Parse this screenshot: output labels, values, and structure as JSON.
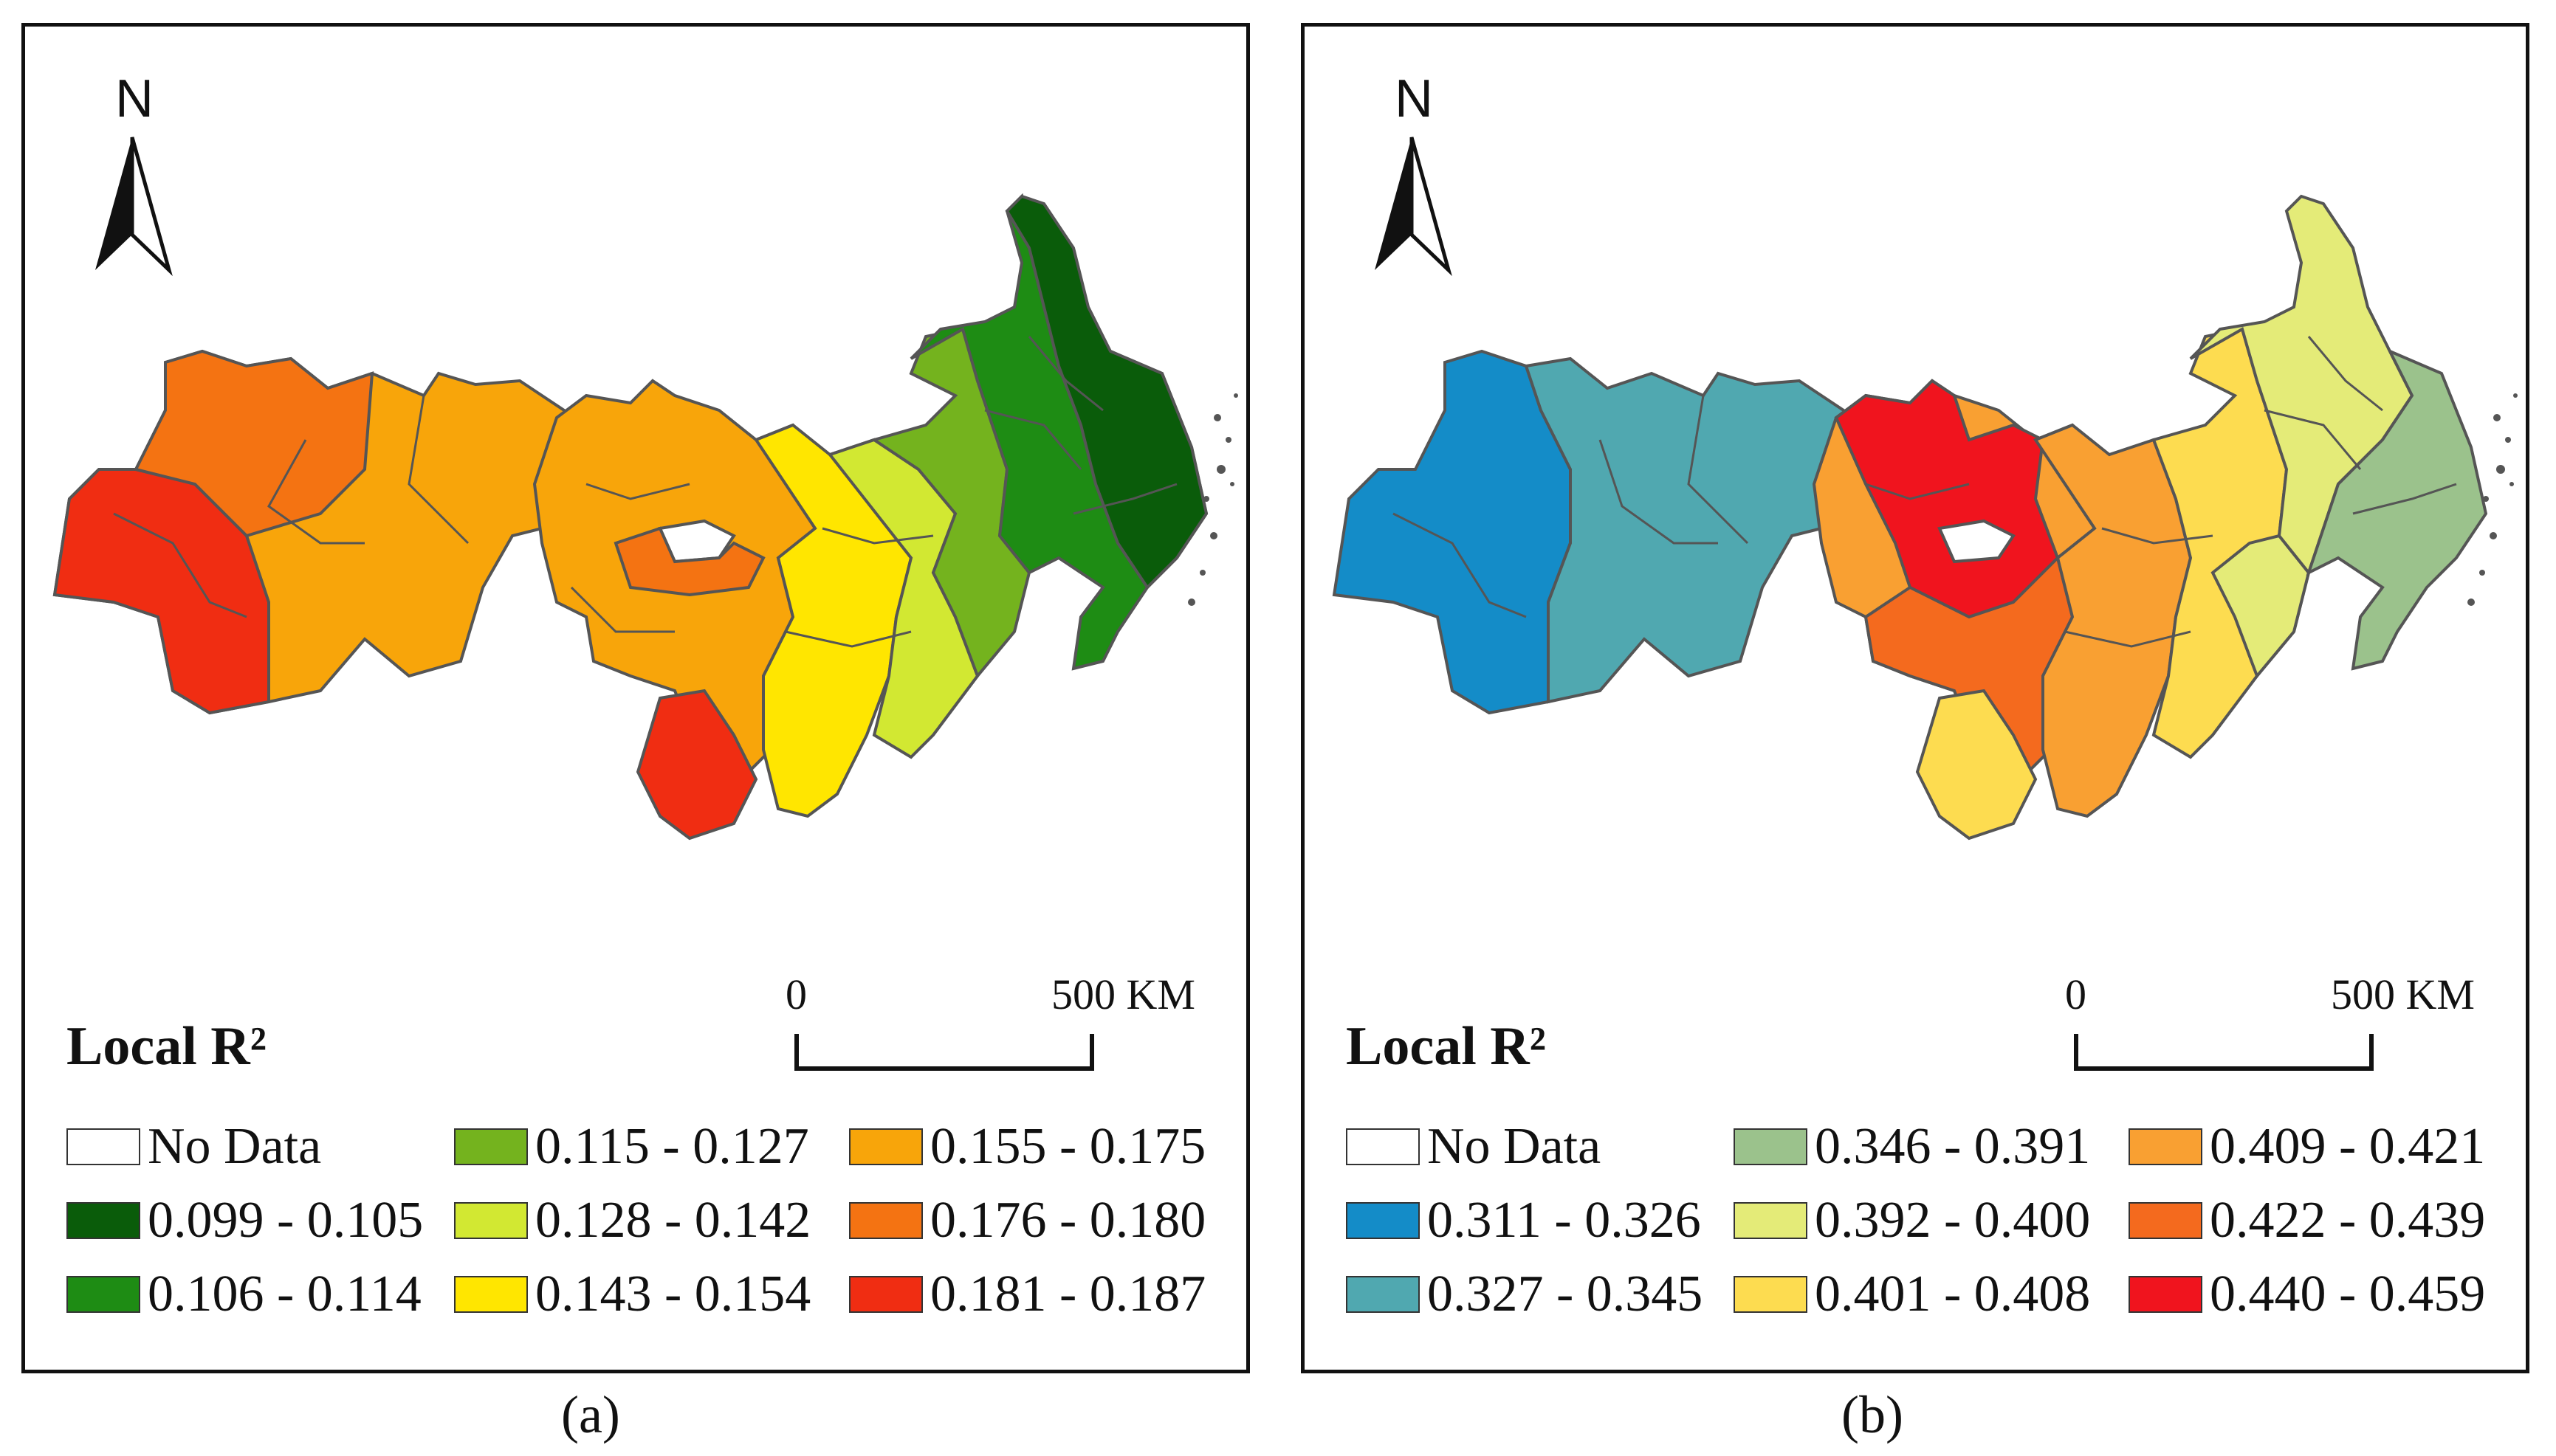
{
  "panels": [
    {
      "id": "a",
      "caption": "(a)",
      "north": "N",
      "legend_title": "Local R²",
      "scale": {
        "start": "0",
        "end": "500 KM"
      },
      "legend": [
        {
          "label": "No Data",
          "color": "#ffffff"
        },
        {
          "label": "0.099 - 0.105",
          "color": "#0a5c0a"
        },
        {
          "label": "0.106 - 0.114",
          "color": "#1e8c14"
        },
        {
          "label": "0.115 - 0.127",
          "color": "#74b31e"
        },
        {
          "label": "0.128 - 0.142",
          "color": "#d2e832"
        },
        {
          "label": "0.143 - 0.154",
          "color": "#ffe600"
        },
        {
          "label": "0.155 - 0.175",
          "color": "#f8a50a"
        },
        {
          "label": "0.176 - 0.180",
          "color": "#f47312"
        },
        {
          "label": "0.181 - 0.187",
          "color": "#f02d12"
        }
      ]
    },
    {
      "id": "b",
      "caption": "(b)",
      "north": "N",
      "legend_title": "Local R²",
      "scale": {
        "start": "0",
        "end": "500 KM"
      },
      "legend": [
        {
          "label": "No Data",
          "color": "#ffffff"
        },
        {
          "label": "0.311 - 0.326",
          "color": "#148cc8"
        },
        {
          "label": "0.327 - 0.345",
          "color": "#50a8b0"
        },
        {
          "label": "0.346 - 0.391",
          "color": "#9bc28c"
        },
        {
          "label": "0.392 - 0.400",
          "color": "#e4eb78"
        },
        {
          "label": "0.401 - 0.408",
          "color": "#fddc50"
        },
        {
          "label": "0.409 - 0.421",
          "color": "#f9a032"
        },
        {
          "label": "0.422 - 0.439",
          "color": "#f46a1e"
        },
        {
          "label": "0.440 - 0.459",
          "color": "#f0141e"
        }
      ]
    }
  ]
}
